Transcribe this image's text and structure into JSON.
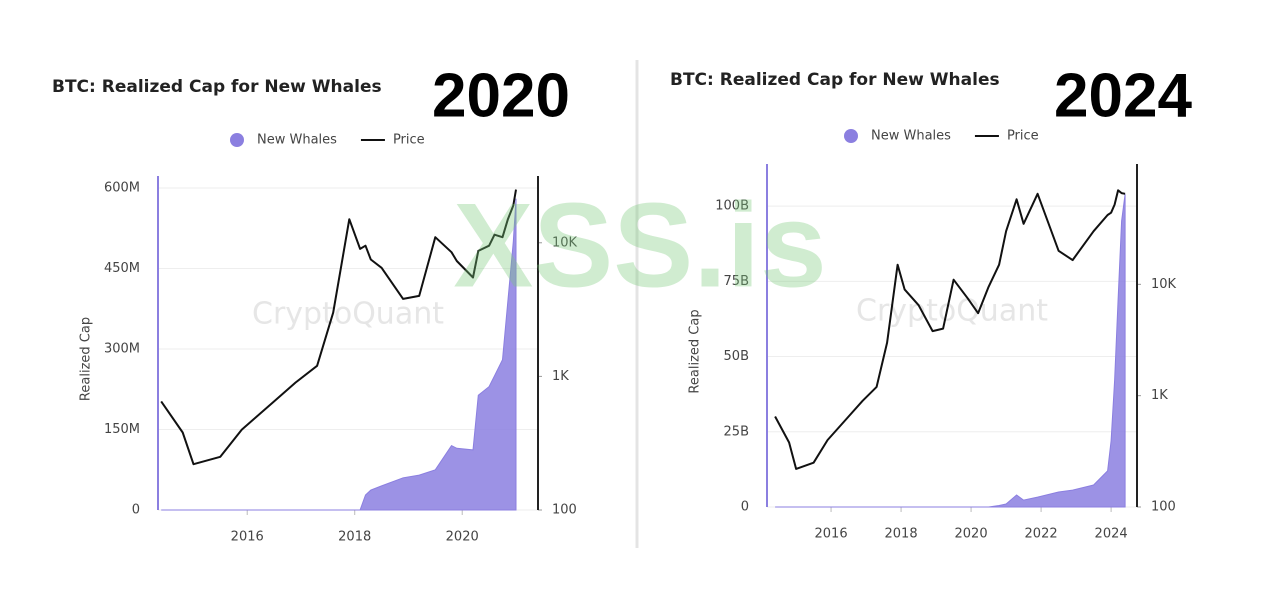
{
  "watermark": "XSS.is",
  "chart_data": [
    {
      "type": "combo",
      "title": "BTC: Realized Cap for New Whales",
      "annotation": "2020",
      "watermark": "CryptoQuant",
      "y_label": "Realized Cap",
      "legend": "top",
      "grid": true,
      "y2_log": true,
      "x": [
        2014.4,
        2014.8,
        2015.0,
        2015.5,
        2015.9,
        2016.5,
        2016.9,
        2017.3,
        2017.6,
        2017.9,
        2018.1,
        2018.2,
        2018.3,
        2018.5,
        2018.9,
        2019.2,
        2019.5,
        2019.8,
        2019.9,
        2020.2,
        2020.3,
        2020.5,
        2020.6,
        2020.75,
        2020.85,
        2020.95,
        2021.0
      ],
      "xlim": [
        2014.34,
        2021.41
      ],
      "xticks": [
        2016,
        2018,
        2020
      ],
      "ylim": [
        0,
        600000000
      ],
      "yticks": [
        0,
        {
          "value": 150000000,
          "label": "150M"
        },
        {
          "value": 300000000,
          "label": "300M"
        },
        {
          "value": 450000000,
          "label": "450M"
        },
        {
          "value": 600000000,
          "label": "600M"
        }
      ],
      "y2lim": [
        100,
        25700
      ],
      "y2ticks": [
        100,
        {
          "value": 1000,
          "label": "1K"
        },
        {
          "value": 10000,
          "label": "10K"
        }
      ],
      "series": [
        {
          "name": "New Whales",
          "type": "area",
          "color": "#8b7fe0",
          "values": [
            0,
            0,
            0,
            0,
            0,
            0,
            0,
            0,
            0,
            0,
            0,
            28000000,
            37000000,
            45000000,
            60000000,
            65000000,
            75000000,
            120000000,
            115000000,
            112000000,
            214000000,
            230000000,
            250000000,
            280000000,
            390000000,
            500000000,
            580000000
          ]
        },
        {
          "name": "Price",
          "type": "line",
          "axis": "y2",
          "color": "#111111",
          "values": [
            650,
            380,
            220,
            250,
            400,
            650,
            900,
            1200,
            3000,
            15000,
            9000,
            9500,
            7500,
            6500,
            3800,
            4000,
            11000,
            8500,
            7300,
            5500,
            8700,
            9500,
            11500,
            11000,
            15000,
            19000,
            25000
          ]
        }
      ]
    },
    {
      "type": "combo",
      "title": "BTC: Realized Cap for New Whales",
      "annotation": "2024",
      "watermark": "CryptoQuant",
      "y_label": "Realized Cap",
      "legend": "top",
      "grid": true,
      "y2_log": true,
      "x": [
        2014.4,
        2014.8,
        2015.0,
        2015.5,
        2015.9,
        2016.5,
        2016.9,
        2017.3,
        2017.6,
        2017.9,
        2018.1,
        2018.5,
        2018.9,
        2019.2,
        2019.5,
        2019.9,
        2020.2,
        2020.5,
        2020.8,
        2021.0,
        2021.3,
        2021.5,
        2021.9,
        2022.5,
        2022.9,
        2023.5,
        2023.9,
        2024.0,
        2024.1,
        2024.2,
        2024.3,
        2024.4
      ],
      "xlim": [
        2014.17,
        2024.74
      ],
      "xticks": [
        2016,
        2018,
        2020,
        2022,
        2024
      ],
      "ylim": [
        0,
        110000000000
      ],
      "yticks": [
        0,
        {
          "value": 25000000000,
          "label": "25B"
        },
        {
          "value": 50000000000,
          "label": "50B"
        },
        {
          "value": 75000000000,
          "label": "75B"
        },
        {
          "value": 100000000000,
          "label": "100B"
        }
      ],
      "y2lim": [
        100,
        94000
      ],
      "y2ticks": [
        100,
        {
          "value": 1000,
          "label": "1K"
        },
        {
          "value": 10000,
          "label": "10K"
        }
      ],
      "series": [
        {
          "name": "New Whales",
          "type": "area",
          "color": "#8b7fe0",
          "values": [
            0,
            0,
            0,
            0,
            0,
            0,
            0,
            0,
            0,
            0,
            0,
            0,
            0,
            0,
            0,
            0,
            0,
            0,
            500000000,
            1000000000,
            4000000000,
            2300000000,
            3300000000,
            5000000000,
            5600000000,
            7300000000,
            12000000000,
            22000000000,
            42000000000,
            69000000000,
            95000000000,
            104000000000
          ]
        },
        {
          "name": "Price",
          "type": "line",
          "axis": "y2",
          "color": "#111111",
          "values": [
            650,
            380,
            220,
            250,
            400,
            650,
            900,
            1200,
            3000,
            15000,
            9000,
            6500,
            3800,
            4000,
            11000,
            7500,
            5500,
            9500,
            15000,
            30000,
            58000,
            35000,
            65000,
            20000,
            16500,
            30000,
            42000,
            44000,
            52000,
            70000,
            66000,
            65000
          ]
        }
      ]
    }
  ]
}
